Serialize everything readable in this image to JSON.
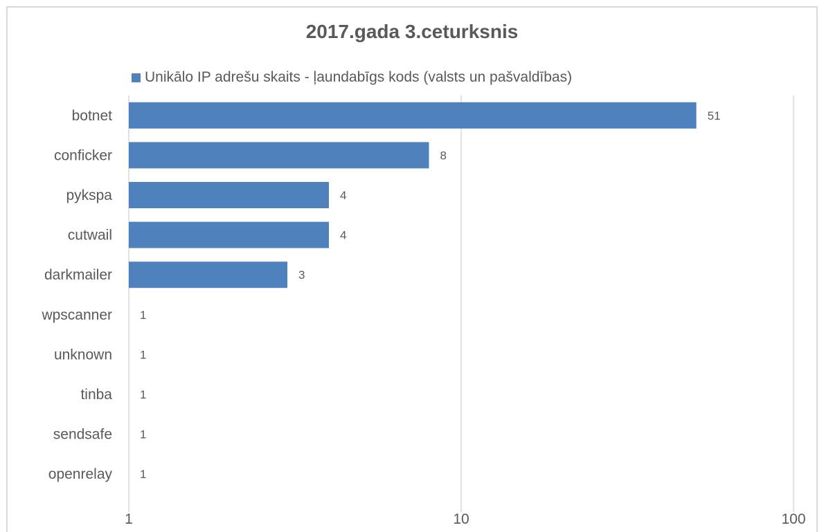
{
  "chart_data": {
    "type": "bar",
    "orientation": "horizontal",
    "title": "2017.gada 3.ceturksnis",
    "categories": [
      "botnet",
      "conficker",
      "pykspa",
      "cutwail",
      "darkmailer",
      "wpscanner",
      "unknown",
      "tinba",
      "sendsafe",
      "openrelay"
    ],
    "series": [
      {
        "name": "Unikālo IP adrešu skaits -  ļaundabīgs kods (valsts un pašvaldības)",
        "values": [
          51,
          8,
          4,
          4,
          3,
          1,
          1,
          1,
          1,
          1
        ],
        "color": "#4f81bd"
      }
    ],
    "x_axis": {
      "scale": "log",
      "range": [
        1,
        100
      ],
      "ticks": [
        "1",
        "10",
        "100"
      ]
    },
    "xlabel": "",
    "ylabel": "",
    "grid": "vertical",
    "legend_position": "top"
  },
  "colors": {
    "bar": "#4f81bd",
    "text": "#595959",
    "gridline": "#d9d9d9",
    "border": "#d9d9d9"
  }
}
